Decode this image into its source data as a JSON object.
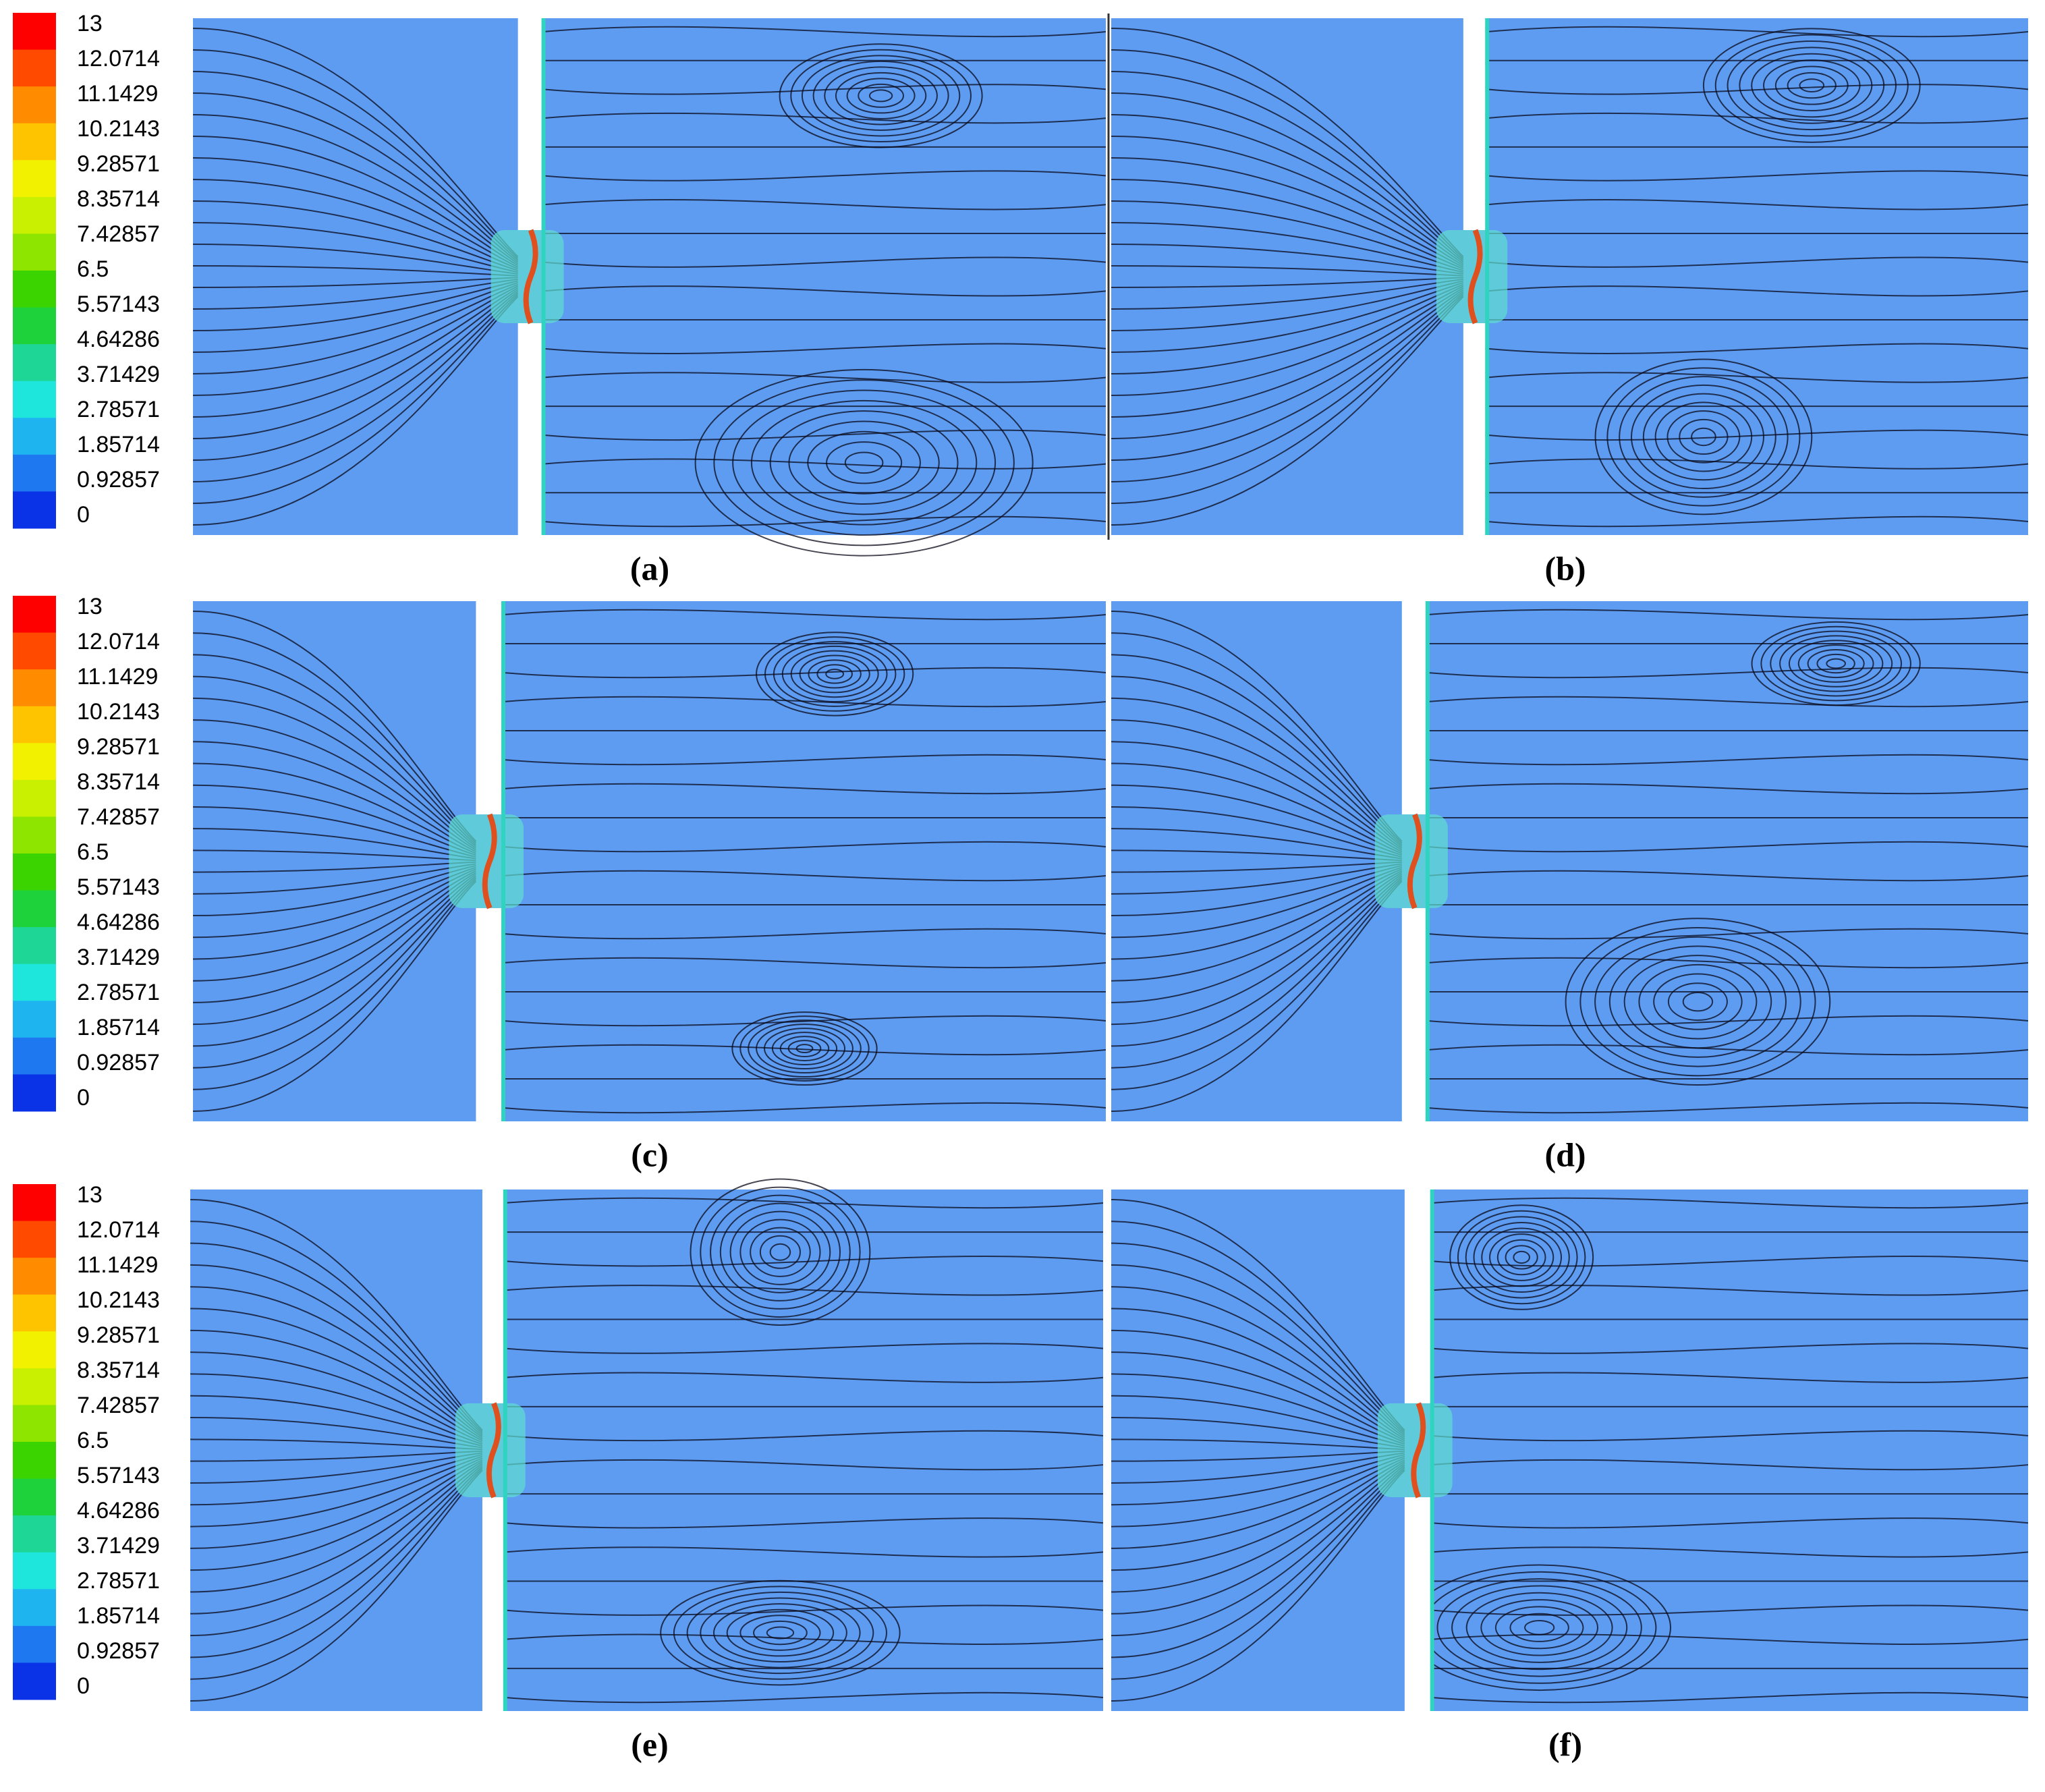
{
  "rows": [
    {
      "colorbar": {
        "labels": [
          "13",
          "12.0714",
          "11.1429",
          "10.2143",
          "9.28571",
          "8.35714",
          "7.42857",
          "6.5",
          "5.57143",
          "4.64286",
          "3.71429",
          "2.78571",
          "1.85714",
          "0.92857",
          "0"
        ]
      },
      "panels": [
        {
          "label": "(a)"
        },
        {
          "label": "(b)"
        }
      ]
    },
    {
      "colorbar": {
        "labels": [
          "13",
          "12.0714",
          "11.1429",
          "10.2143",
          "9.28571",
          "8.35714",
          "7.42857",
          "6.5",
          "5.57143",
          "4.64286",
          "3.71429",
          "2.78571",
          "1.85714",
          "0.92857",
          "0"
        ]
      },
      "panels": [
        {
          "label": "(c)"
        },
        {
          "label": "(d)"
        }
      ]
    },
    {
      "colorbar": {
        "labels": [
          "13",
          "12.0714",
          "11.1429",
          "10.2143",
          "9.28571",
          "8.35714",
          "7.42857",
          "6.5",
          "5.57143",
          "4.64286",
          "3.71429",
          "2.78571",
          "1.85714",
          "0.92857",
          "0"
        ]
      },
      "panels": [
        {
          "label": "(e)"
        },
        {
          "label": "(f)"
        }
      ]
    }
  ],
  "colorbar_colors": [
    "#ff0000",
    "#ff4a00",
    "#ff8c00",
    "#ffc400",
    "#f2f200",
    "#c8f000",
    "#8ee600",
    "#3cd400",
    "#1ed23c",
    "#1ed696",
    "#1ee6dc",
    "#1eb4f0",
    "#1e78f0",
    "#0a32e6"
  ]
}
